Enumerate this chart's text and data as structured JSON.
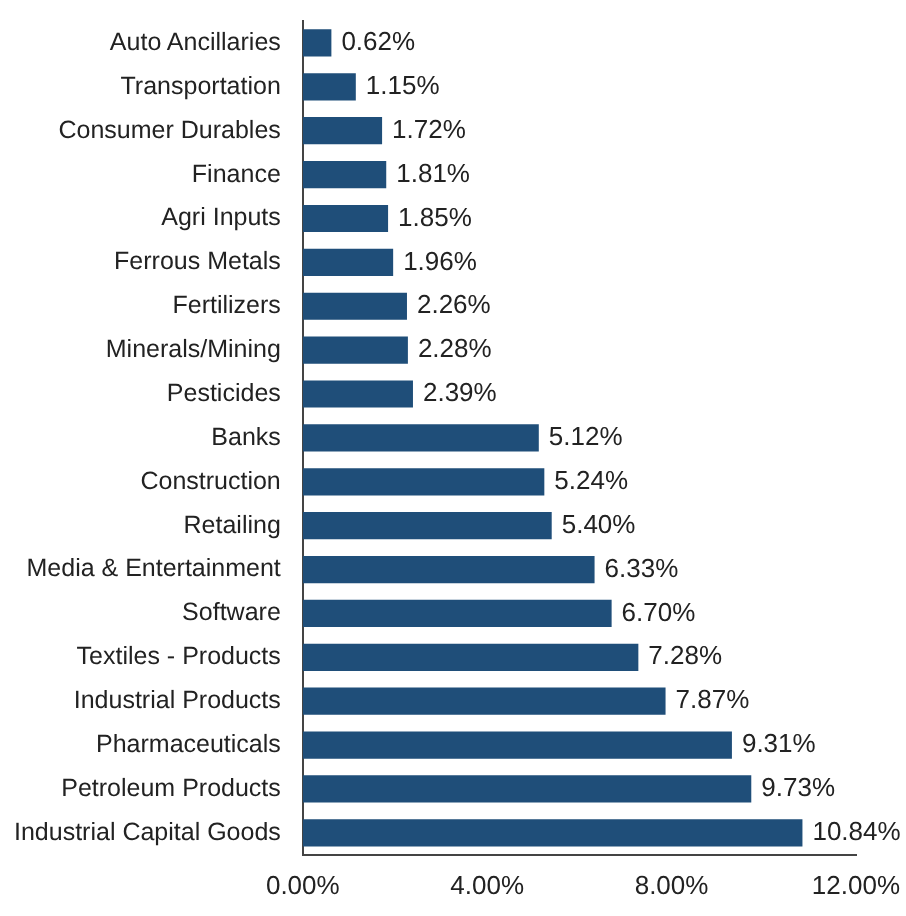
{
  "chart_data": {
    "type": "bar",
    "orientation": "horizontal",
    "categories": [
      "Auto Ancillaries",
      "Transportation",
      "Consumer Durables",
      "Finance",
      "Agri Inputs",
      "Ferrous Metals",
      "Fertilizers",
      "Minerals/Mining",
      "Pesticides",
      "Banks",
      "Construction",
      "Retailing",
      "Media & Entertainment",
      "Software",
      "Textiles - Products",
      "Industrial Products",
      "Pharmaceuticals",
      "Petroleum Products",
      "Industrial Capital Goods"
    ],
    "values": [
      0.62,
      1.15,
      1.72,
      1.81,
      1.85,
      1.96,
      2.26,
      2.28,
      2.39,
      5.12,
      5.24,
      5.4,
      6.33,
      6.7,
      7.28,
      7.87,
      9.31,
      9.73,
      10.84
    ],
    "value_labels": [
      "0.62%",
      "1.15%",
      "1.72%",
      "1.81%",
      "1.85%",
      "1.96%",
      "2.26%",
      "2.28%",
      "2.39%",
      "5.12%",
      "5.24%",
      "5.40%",
      "6.33%",
      "6.70%",
      "7.28%",
      "7.87%",
      "9.31%",
      "9.73%",
      "10.84%"
    ],
    "color": "#1f4e79",
    "xlim": [
      0,
      12
    ],
    "xticks": [
      {
        "value": 0,
        "label": "0.00%"
      },
      {
        "value": 4,
        "label": "4.00%"
      },
      {
        "value": 8,
        "label": "8.00%"
      },
      {
        "value": 12,
        "label": "12.00%"
      }
    ],
    "grid": false,
    "legend": false
  }
}
